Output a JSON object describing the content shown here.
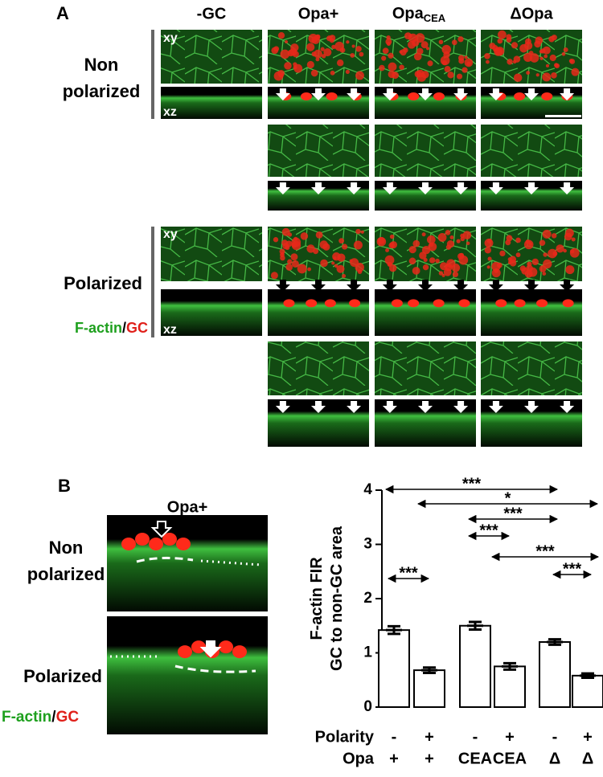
{
  "panel_a": {
    "label": "A",
    "columns": [
      "-GC",
      "Opa+",
      {
        "text": "Opa",
        "subscript": "CEA"
      },
      "ΔOpa"
    ],
    "row_non_polarized": [
      "Non",
      "polarized"
    ],
    "row_polarized": "Polarized",
    "view_xy": "xy",
    "view_xz": "xz",
    "stain": {
      "actin": "F-actin",
      "sep": "/",
      "gc": "GC"
    }
  },
  "panel_b": {
    "label": "B",
    "image_title": "Opa+",
    "row_non_polarized": [
      "Non",
      "polarized"
    ],
    "row_polarized": "Polarized",
    "stain": {
      "actin": "F-actin",
      "sep": "/",
      "gc": "GC"
    }
  },
  "chart_data": {
    "type": "bar",
    "ylabel": [
      "F-actin FIR",
      "GC to non-GC area"
    ],
    "ylim": [
      0,
      4
    ],
    "yticks": [
      0,
      1,
      2,
      3,
      4
    ],
    "values": [
      1.42,
      0.68,
      1.5,
      0.75,
      1.2,
      0.58
    ],
    "errors": [
      0.07,
      0.05,
      0.07,
      0.06,
      0.05,
      0.04
    ],
    "color": "#ffffff",
    "rows": [
      {
        "name": "Polarity",
        "labels": [
          "-",
          "+",
          "-",
          "+",
          "-",
          "+"
        ]
      },
      {
        "name": "Opa",
        "labels": [
          "+",
          "+",
          "CEA",
          "CEA",
          "Δ",
          "Δ"
        ]
      }
    ],
    "significance": [
      "***",
      "*",
      "***",
      "***",
      "***",
      "***",
      "***"
    ]
  }
}
